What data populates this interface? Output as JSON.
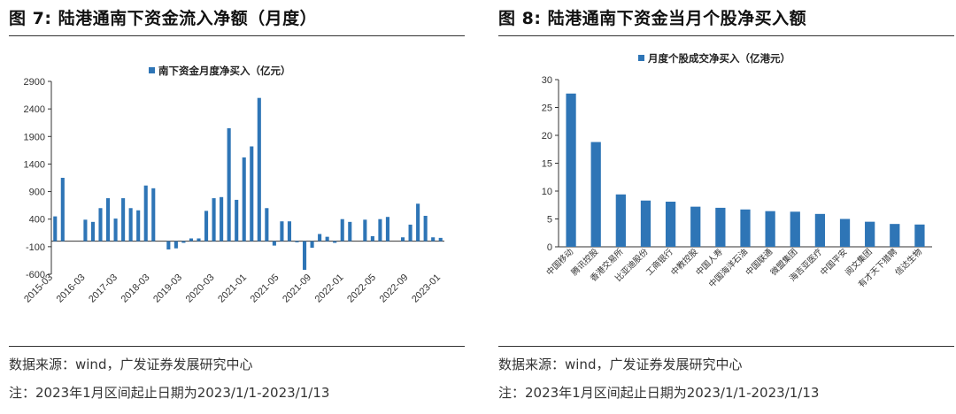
{
  "left": {
    "fig_label": "图 7:",
    "fig_title": "陆港通南下资金流入净额（月度）",
    "source": "数据来源：wind，广发证券发展研究中心",
    "note": "注：2023年1月区间起止日期为2023/1/1-2023/1/13"
  },
  "right": {
    "fig_label": "图 8:",
    "fig_title": "陆港通南下资金当月个股净买入额",
    "source": "数据来源：wind，广发证券发展研究中心",
    "note": "注：2023年1月区间起止日期为2023/1/1-2023/1/13"
  },
  "chart_data": [
    {
      "type": "bar",
      "series_name": "南下资金月度净买入（亿元）",
      "color": "#2e75b6",
      "ylim": [
        -600,
        2900
      ],
      "yticks": [
        2900,
        2400,
        1900,
        1400,
        900,
        400,
        -100,
        -600
      ],
      "x_tick_labels": [
        "2015-03",
        "2016-03",
        "2017-03",
        "2018-03",
        "2019-03",
        "2020-03",
        "2021-01",
        "2021-05",
        "2021-09",
        "2022-01",
        "2022-05",
        "2022-09",
        "2023-01"
      ],
      "values": [
        450,
        1150,
        0,
        0,
        390,
        350,
        600,
        780,
        410,
        780,
        600,
        560,
        1010,
        960,
        0,
        -150,
        -130,
        -30,
        50,
        50,
        550,
        780,
        800,
        2050,
        750,
        1520,
        1720,
        2600,
        600,
        -80,
        360,
        360,
        -20,
        -520,
        -120,
        130,
        80,
        -30,
        400,
        350,
        0,
        390,
        90,
        400,
        440,
        0,
        70,
        300,
        680,
        460,
        70,
        60
      ]
    },
    {
      "type": "bar",
      "series_name": "月度个股成交净买入（亿港元）",
      "color": "#2e75b6",
      "ylim": [
        0,
        30
      ],
      "yticks": [
        30,
        25,
        20,
        15,
        10,
        5,
        0
      ],
      "categories": [
        "中国移动",
        "腾讯控股",
        "香港交易所",
        "比亚迪股份",
        "工商银行",
        "中教控股",
        "中国人寿",
        "中国海洋石油",
        "中国联通",
        "微盟集团",
        "海吉亚医疗",
        "中国平安",
        "阅文集团",
        "有才天下猎聘",
        "信达生物"
      ],
      "values": [
        27.5,
        18.8,
        9.4,
        8.3,
        8.1,
        7.2,
        7.0,
        6.7,
        6.4,
        6.3,
        5.9,
        5.0,
        4.5,
        4.1,
        4.0
      ]
    }
  ]
}
